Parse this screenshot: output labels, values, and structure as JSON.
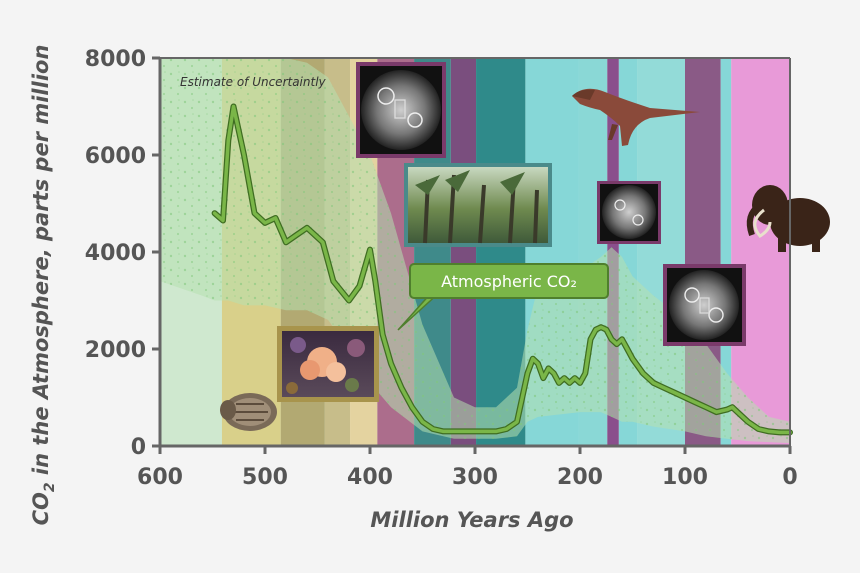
{
  "chart_data": {
    "type": "line",
    "title": "",
    "xlabel": "Million Years Ago",
    "ylabel": "CO2 in the Atmosphere, parts per million",
    "xlim": [
      600,
      0
    ],
    "ylim": [
      0,
      8000
    ],
    "x_ticks": [
      "600",
      "500",
      "400",
      "300",
      "200",
      "100",
      "0"
    ],
    "y_ticks": [
      "0",
      "2000",
      "4000",
      "6000",
      "8000"
    ],
    "grid": false,
    "annotation": "Estimate of Uncertaintly",
    "series": [
      {
        "name": "Atmospheric CO2",
        "color": "#7ab648",
        "x": [
          548,
          540,
          535,
          530,
          520,
          510,
          500,
          490,
          480,
          470,
          460,
          445,
          435,
          420,
          410,
          400,
          395,
          388,
          380,
          370,
          360,
          350,
          340,
          330,
          320,
          310,
          300,
          290,
          280,
          270,
          260,
          250,
          245,
          240,
          235,
          230,
          225,
          220,
          215,
          210,
          205,
          200,
          195,
          190,
          185,
          180,
          175,
          170,
          165,
          160,
          155,
          150,
          140,
          130,
          120,
          110,
          100,
          90,
          80,
          70,
          60,
          55,
          50,
          40,
          30,
          20,
          10,
          0
        ],
        "values": [
          4800,
          4650,
          6300,
          7000,
          6000,
          4800,
          4600,
          4700,
          4200,
          4350,
          4500,
          4200,
          3400,
          3000,
          3300,
          4050,
          3400,
          2300,
          1700,
          1200,
          800,
          500,
          350,
          300,
          300,
          300,
          300,
          300,
          300,
          350,
          500,
          1500,
          1800,
          1700,
          1400,
          1600,
          1500,
          1300,
          1400,
          1300,
          1400,
          1300,
          1500,
          2200,
          2400,
          2450,
          2400,
          2200,
          2100,
          2200,
          2000,
          1800,
          1500,
          1300,
          1200,
          1100,
          1000,
          900,
          800,
          700,
          750,
          800,
          700,
          500,
          350,
          300,
          280,
          280
        ]
      }
    ],
    "uncertainty_band": {
      "x": [
        600,
        560,
        548,
        535,
        520,
        500,
        480,
        460,
        440,
        420,
        400,
        380,
        350,
        320,
        300,
        280,
        260,
        250,
        240,
        220,
        200,
        180,
        170,
        160,
        150,
        130,
        100,
        80,
        60,
        40,
        20,
        0
      ],
      "upper": [
        8000,
        8000,
        8000,
        8000,
        8000,
        8000,
        8000,
        7900,
        7600,
        6800,
        6000,
        4800,
        2500,
        1000,
        800,
        800,
        1200,
        2400,
        3300,
        3400,
        3600,
        3900,
        4100,
        3900,
        3500,
        3100,
        2600,
        2100,
        1500,
        1000,
        600,
        500
      ],
      "lower": [
        3400,
        3100,
        3000,
        3000,
        2900,
        2900,
        2800,
        2800,
        2600,
        2000,
        1300,
        800,
        300,
        150,
        150,
        150,
        200,
        500,
        600,
        650,
        700,
        700,
        600,
        500,
        500,
        400,
        300,
        200,
        150,
        100,
        80,
        60
      ]
    },
    "period_bands": [
      {
        "from": 600,
        "to": 541,
        "color": "#cfe8cf"
      },
      {
        "from": 541,
        "to": 485,
        "color": "#d9d08a"
      },
      {
        "from": 485,
        "to": 443,
        "color": "#b2a972"
      },
      {
        "from": 443,
        "to": 419,
        "color": "#c7bd8a"
      },
      {
        "from": 419,
        "to": 393,
        "color": "#e4d3a0"
      },
      {
        "from": 393,
        "to": 358,
        "color": "#ac6d8c"
      },
      {
        "from": 358,
        "to": 323,
        "color": "#3f8a8a"
      },
      {
        "from": 323,
        "to": 299,
        "color": "#7a4e7e"
      },
      {
        "from": 299,
        "to": 252,
        "color": "#2f8a8a"
      },
      {
        "from": 252,
        "to": 201,
        "color": "#86d7d7"
      },
      {
        "from": 201,
        "to": 174,
        "color": "#8ad8d6"
      },
      {
        "from": 174,
        "to": 163,
        "color": "#8a4f8c"
      },
      {
        "from": 163,
        "to": 145,
        "color": "#86d7d7"
      },
      {
        "from": 145,
        "to": 100,
        "color": "#93dbd8"
      },
      {
        "from": 100,
        "to": 66,
        "color": "#8a5a86"
      },
      {
        "from": 66,
        "to": 56,
        "color": "#86d7d7"
      },
      {
        "from": 56,
        "to": 0,
        "color": "#e89ad8"
      }
    ]
  },
  "callout": {
    "label": "Atmospheric CO₂"
  },
  "icons": [
    {
      "name": "trilobite-fossil-image"
    },
    {
      "name": "coral-reef-photo-image"
    },
    {
      "name": "diatom-microfossil-image"
    },
    {
      "name": "carboniferous-forest-image"
    },
    {
      "name": "diatom-microfossil-small-image"
    },
    {
      "name": "diatom-microfossil-right-image"
    },
    {
      "name": "tyrannosaurus-image"
    },
    {
      "name": "woolly-mammoth-image"
    }
  ],
  "colors": {
    "line": "#7ab648",
    "line_outline": "#3f6d22",
    "axis": "#666666",
    "uncertainty": "#b6e0b0",
    "callout_fill": "#7ab648",
    "callout_border": "#4f7f2d"
  }
}
